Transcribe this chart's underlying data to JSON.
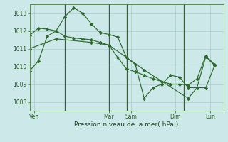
{
  "bg_color": "#cce8e8",
  "grid_color": "#aacaca",
  "line_color": "#2d6a2d",
  "xlabel": "Pression niveau de la mer( hPa )",
  "ylim": [
    1007.5,
    1013.5
  ],
  "yticks": [
    1008,
    1009,
    1010,
    1011,
    1012,
    1013
  ],
  "xlim": [
    0,
    22
  ],
  "xtick_pos": [
    0.5,
    5.5,
    9.5,
    11.5,
    16.5,
    20.5
  ],
  "xtick_labels": [
    "Ven",
    "Mar",
    "Sam",
    "Dim",
    "Lun",
    ""
  ],
  "vline_positions": [
    4.0,
    9.0,
    11.0,
    17.5
  ],
  "line1_x": [
    0,
    1,
    2,
    3,
    4,
    5,
    6,
    7,
    8,
    9,
    10,
    11,
    12,
    13,
    14,
    15,
    16,
    17,
    18,
    19,
    20,
    21
  ],
  "line1_y": [
    1009.75,
    1010.3,
    1011.7,
    1012.0,
    1012.8,
    1013.3,
    1013.0,
    1012.4,
    1011.9,
    1011.8,
    1011.65,
    1010.5,
    1010.1,
    1008.2,
    1008.8,
    1009.0,
    1009.5,
    1009.4,
    1008.8,
    1008.8,
    1010.55,
    1010.05
  ],
  "line2_x": [
    0,
    1,
    2,
    3,
    4,
    5,
    6,
    7,
    8,
    9,
    10,
    11,
    12,
    13,
    14,
    15,
    16,
    17,
    18,
    19,
    20,
    21
  ],
  "line2_y": [
    1011.75,
    1012.15,
    1012.1,
    1012.0,
    1011.7,
    1011.6,
    1011.55,
    1011.5,
    1011.35,
    1011.2,
    1010.5,
    1009.85,
    1009.7,
    1009.5,
    1009.3,
    1009.15,
    1009.0,
    1009.0,
    1008.95,
    1009.3,
    1010.6,
    1010.1
  ],
  "line3_x": [
    0,
    3,
    7,
    9,
    13,
    18,
    19,
    20,
    21
  ],
  "line3_y": [
    1011.0,
    1011.55,
    1011.35,
    1011.2,
    1009.8,
    1008.2,
    1008.8,
    1008.8,
    1010.05
  ]
}
